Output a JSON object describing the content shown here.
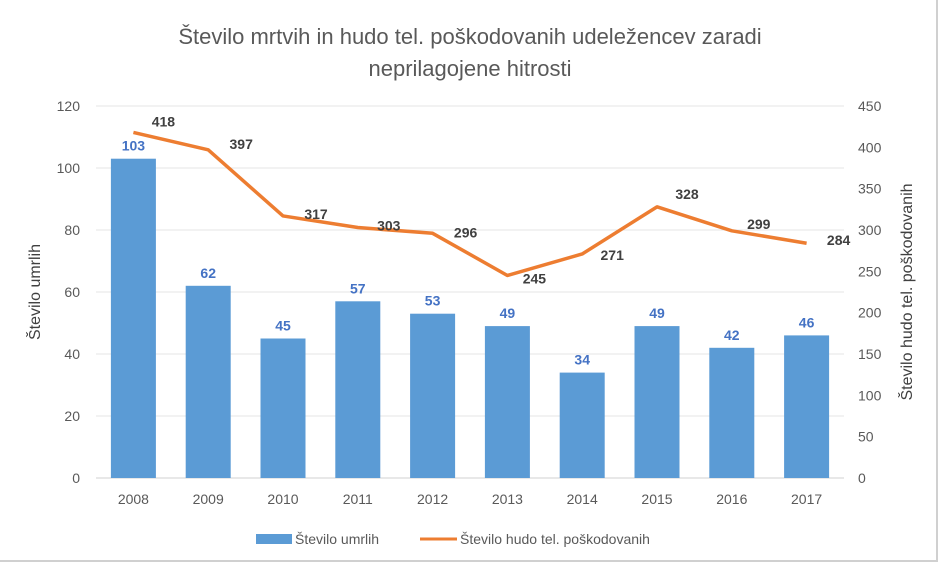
{
  "chart_data": {
    "type": "bar+line",
    "title_lines": [
      "Število mrtvih in hudo tel. poškodovanih udeležencev zaradi",
      "neprilagojene hitrosti"
    ],
    "categories": [
      "2008",
      "2009",
      "2010",
      "2011",
      "2012",
      "2013",
      "2014",
      "2015",
      "2016",
      "2017"
    ],
    "series": [
      {
        "name": "Število umrlih",
        "type": "bar",
        "axis": "left",
        "color": "#5b9bd5",
        "label_color": "#4472c4",
        "values": [
          103,
          62,
          45,
          57,
          53,
          49,
          34,
          49,
          42,
          46
        ]
      },
      {
        "name": "Število hudo tel. poškodovanih",
        "type": "line",
        "axis": "right",
        "color": "#ed7d31",
        "label_color": "#404040",
        "values": [
          418,
          397,
          317,
          303,
          296,
          245,
          271,
          328,
          299,
          284
        ]
      }
    ],
    "ylabel": "Število umrlih",
    "ylabel_right": "Število hudo tel. poškodovanih",
    "ylim": [
      0,
      120
    ],
    "yticks": [
      "0",
      "20",
      "40",
      "60",
      "80",
      "100",
      "120"
    ],
    "ylim_right": [
      0,
      450
    ],
    "yticks_right": [
      "0",
      "50",
      "100",
      "150",
      "200",
      "250",
      "300",
      "350",
      "400",
      "450"
    ],
    "grid": true,
    "legend": "bottom"
  }
}
